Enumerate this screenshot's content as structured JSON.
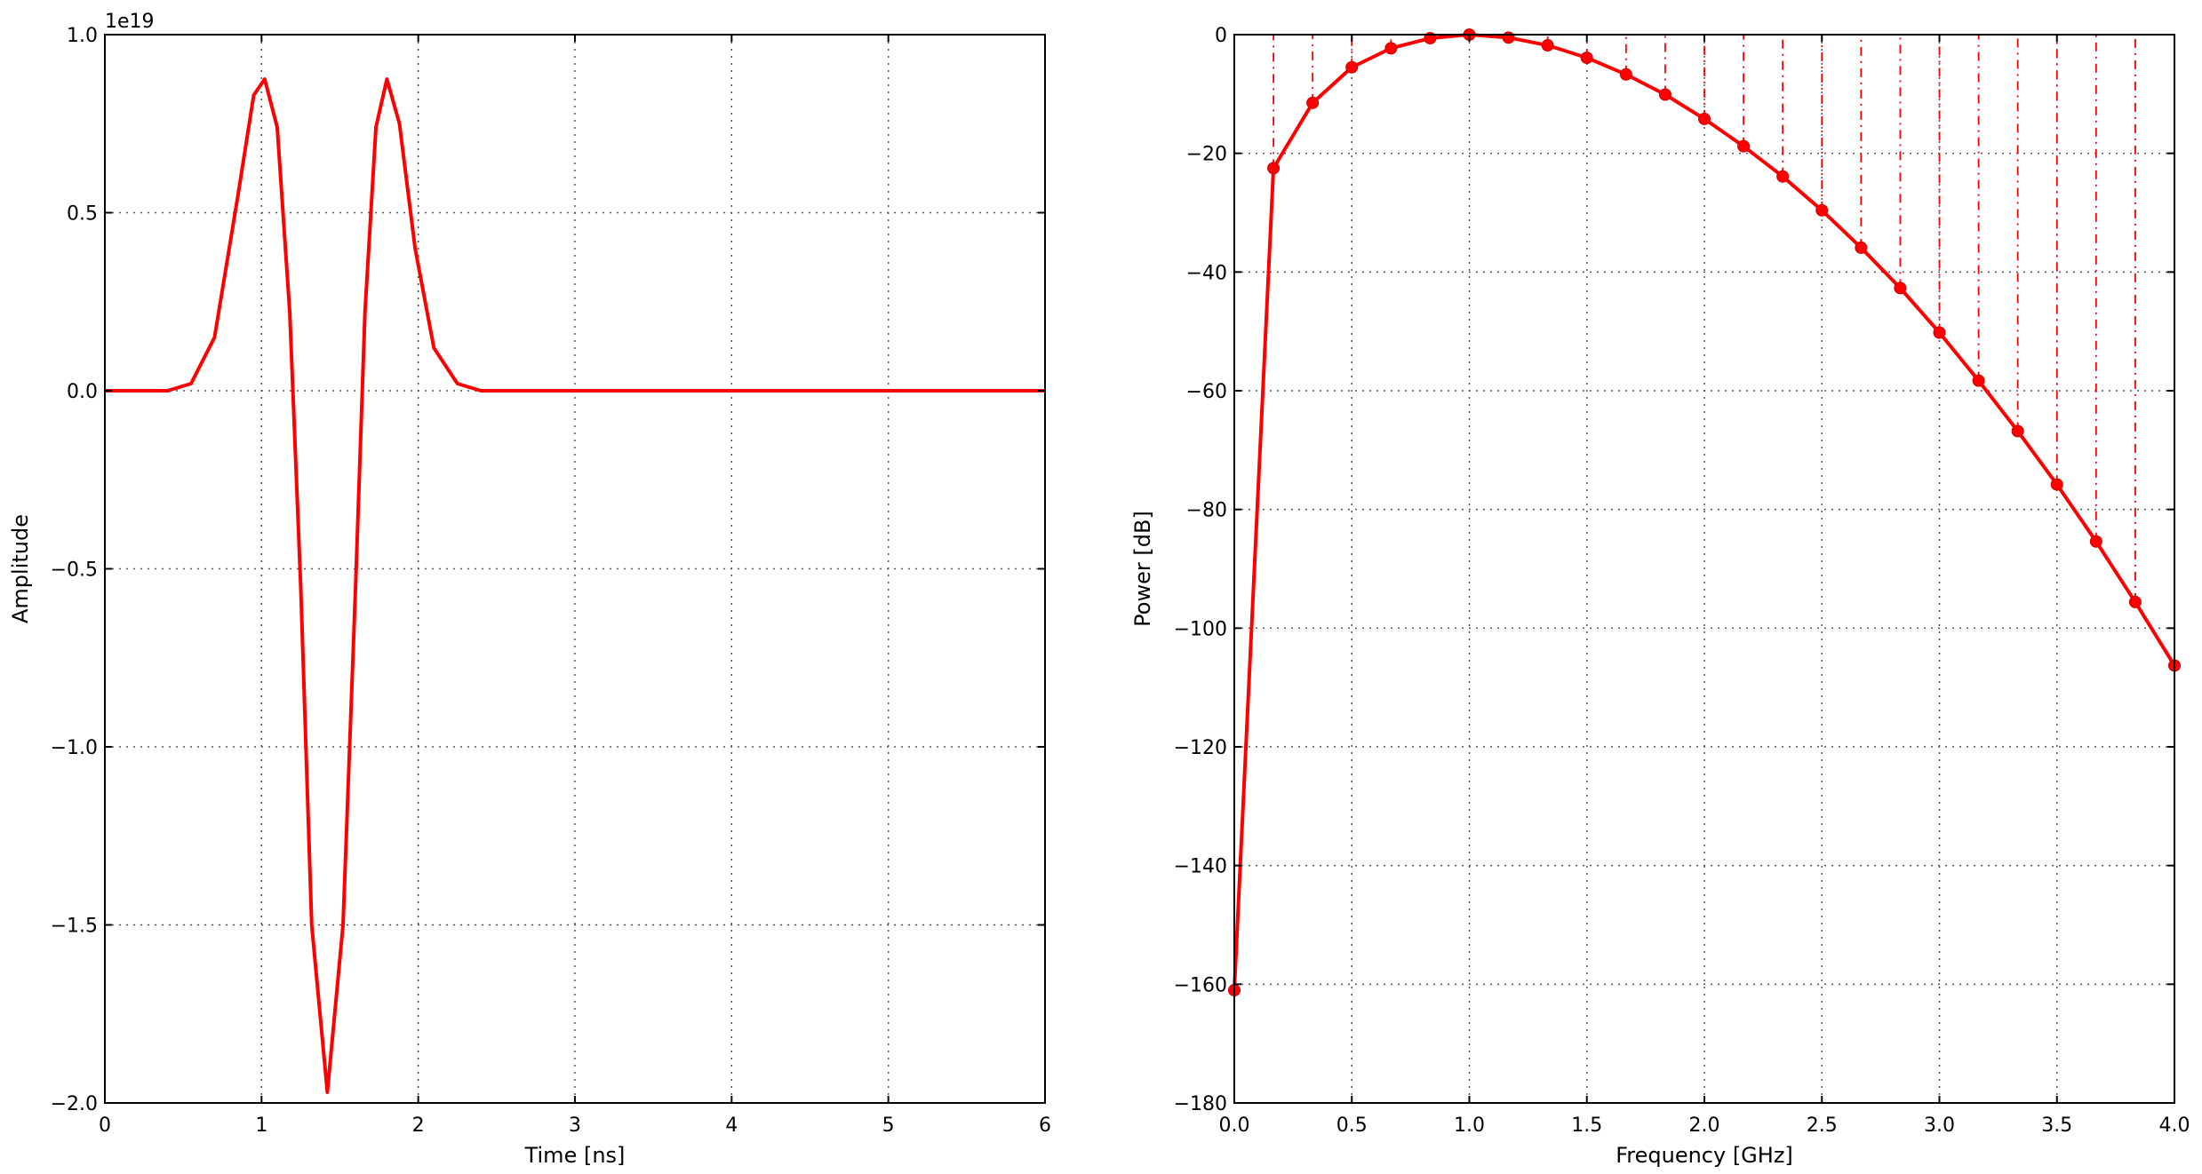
{
  "chart_data": [
    {
      "type": "line",
      "xlabel": "Time [ns]",
      "ylabel": "Amplitude",
      "offset_text": "1e19",
      "xlim": [
        0,
        6
      ],
      "ylim": [
        -2.0,
        1.0
      ],
      "xticks": [
        0,
        1,
        2,
        3,
        4,
        5,
        6
      ],
      "xtick_labels": [
        "0",
        "1",
        "2",
        "3",
        "4",
        "5",
        "6"
      ],
      "yticks": [
        -2.0,
        -1.5,
        -1.0,
        -0.5,
        0.0,
        0.5,
        1.0
      ],
      "ytick_labels": [
        "−2.0",
        "−1.5",
        "−1.0",
        "−0.5",
        "0.0",
        "0.5",
        "1.0"
      ],
      "grid": true,
      "color": "#ff0000",
      "series": [
        {
          "x": [
            0,
            0.4,
            0.55,
            0.7,
            0.85,
            0.95,
            1.02,
            1.1,
            1.18,
            1.25,
            1.32,
            1.42,
            1.52,
            1.6,
            1.66,
            1.73,
            1.8,
            1.88,
            1.98,
            2.1,
            2.25,
            2.4,
            6.0
          ],
          "y": [
            0,
            0.0,
            0.02,
            0.15,
            0.55,
            0.83,
            0.875,
            0.74,
            0.22,
            -0.55,
            -1.5,
            -1.97,
            -1.5,
            -0.55,
            0.22,
            0.74,
            0.875,
            0.75,
            0.4,
            0.12,
            0.02,
            0.0,
            0.0
          ]
        }
      ]
    },
    {
      "type": "line",
      "xlabel": "Frequency [GHz]",
      "ylabel": "Power [dB]",
      "xlim": [
        0,
        4
      ],
      "ylim": [
        -180,
        0
      ],
      "xticks": [
        0,
        0.5,
        1,
        1.5,
        2,
        2.5,
        3,
        3.5,
        4
      ],
      "xtick_labels": [
        "0.0",
        "0.5",
        "1.0",
        "1.5",
        "2.0",
        "2.5",
        "3.0",
        "3.5",
        "4.0"
      ],
      "yticks": [
        -180,
        -160,
        -140,
        -120,
        -100,
        -80,
        -60,
        -40,
        -20,
        0
      ],
      "ytick_labels": [
        "−180",
        "−160",
        "−140",
        "−120",
        "−100",
        "−80",
        "−60",
        "−40",
        "−20",
        "0"
      ],
      "grid": true,
      "color": "#ff0000",
      "series": [
        {
          "x": [
            0.0,
            0.1667,
            0.3333,
            0.5,
            0.6667,
            0.8333,
            1.0,
            1.1667,
            1.3333,
            1.5,
            1.6667,
            1.8333,
            2.0,
            2.1667,
            2.3333,
            2.5,
            2.6667,
            2.8333,
            3.0,
            3.1667,
            3.3333,
            3.5,
            3.6667,
            3.8333,
            4.0
          ],
          "y": [
            -161,
            -22.5,
            -11.5,
            -5.5,
            -2.3,
            -0.6,
            0.0,
            -0.5,
            -1.8,
            -3.9,
            -6.7,
            -10.1,
            -14.2,
            -18.8,
            -23.9,
            -29.6,
            -35.9,
            -42.7,
            -50.2,
            -58.3,
            -66.8,
            -75.8,
            -85.4,
            -95.6,
            -106.3
          ],
          "markers": true,
          "stems": true
        }
      ]
    }
  ]
}
